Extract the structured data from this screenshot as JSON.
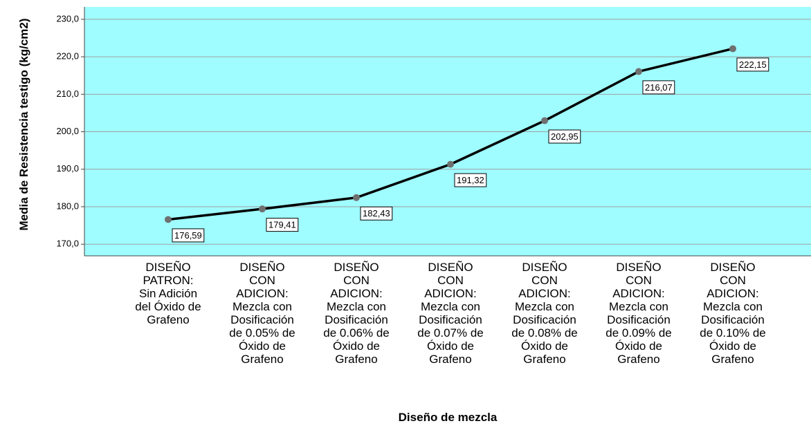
{
  "chart_data": {
    "type": "line",
    "x_label": "Diseño de mezcla",
    "y_label": "Media de Resistencia testigo (kg/cm2)",
    "categories": [
      "DISEÑO PATRON: Sin Adición del Óxido de Grafeno",
      "DISEÑO CON ADICION: Mezcla con Dosificación de 0.05% de Óxido de Grafeno",
      "DISEÑO CON ADICION: Mezcla con Dosificación de 0.06% de Óxido de Grafeno",
      "DISEÑO CON ADICION: Mezcla con Dosificación de 0.07% de Óxido de Grafeno",
      "DISEÑO CON ADICION: Mezcla con Dosificación de 0.08% de Óxido de Grafeno",
      "DISEÑO CON ADICION: Mezcla con Dosificación de 0.09% de Óxido de Grafeno",
      "DISEÑO CON ADICION: Mezcla con Dosificación de 0.10% de Óxido de Grafeno"
    ],
    "values": [
      176.59,
      179.41,
      182.43,
      191.32,
      202.95,
      216.07,
      222.15
    ],
    "value_labels": [
      "176,59",
      "179,41",
      "182,43",
      "191,32",
      "202,95",
      "216,07",
      "222,15"
    ],
    "color": "#000000",
    "marker_color": "#707070",
    "background": "#9ffcff",
    "ylim": [
      166.9,
      233.3
    ],
    "yticks": [
      {
        "value": 170,
        "label": "170,0"
      },
      {
        "value": 180,
        "label": "180,0"
      },
      {
        "value": 190,
        "label": "190,0"
      },
      {
        "value": 200,
        "label": "200,0"
      },
      {
        "value": 210,
        "label": "210,0"
      },
      {
        "value": 220,
        "label": "220,0"
      },
      {
        "value": 230,
        "label": "230,0"
      }
    ],
    "grid": true
  }
}
